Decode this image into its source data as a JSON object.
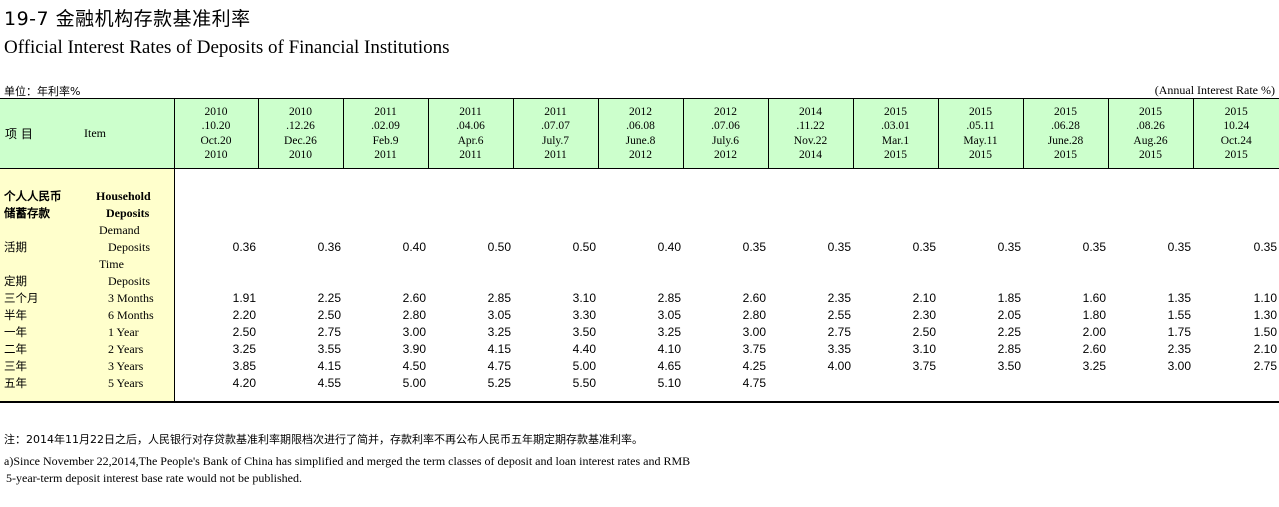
{
  "title_cn": "19-7 金融机构存款基准利率",
  "title_en": "Official Interest Rates of Deposits of Financial Institutions",
  "unit_cn": "单位：年利率%",
  "unit_en": "(Annual Interest Rate %)",
  "header": {
    "item_cn": "项  目",
    "item_en": "Item",
    "dates": [
      {
        "cn_year": "2010",
        "cn_date": ".10.20",
        "en_date": "Oct.20",
        "en_year": "2010"
      },
      {
        "cn_year": "2010",
        "cn_date": ".12.26",
        "en_date": "Dec.26",
        "en_year": "2010"
      },
      {
        "cn_year": "2011",
        "cn_date": ".02.09",
        "en_date": "Feb.9",
        "en_year": "2011"
      },
      {
        "cn_year": "2011",
        "cn_date": ".04.06",
        "en_date": "Apr.6",
        "en_year": "2011"
      },
      {
        "cn_year": "2011",
        "cn_date": ".07.07",
        "en_date": "July.7",
        "en_year": "2011"
      },
      {
        "cn_year": "2012",
        "cn_date": ".06.08",
        "en_date": "June.8",
        "en_year": "2012"
      },
      {
        "cn_year": "2012",
        "cn_date": ".07.06",
        "en_date": "July.6",
        "en_year": "2012"
      },
      {
        "cn_year": "2014",
        "cn_date": ".11.22",
        "en_date": "Nov.22",
        "en_year": "2014"
      },
      {
        "cn_year": "2015",
        "cn_date": ".03.01",
        "en_date": "Mar.1",
        "en_year": "2015"
      },
      {
        "cn_year": "2015",
        "cn_date": ".05.11",
        "en_date": "May.11",
        "en_year": "2015"
      },
      {
        "cn_year": "2015",
        "cn_date": ".06.28",
        "en_date": "June.28",
        "en_year": "2015"
      },
      {
        "cn_year": "2015",
        "cn_date": ".08.26",
        "en_date": "Aug.26",
        "en_year": "2015"
      },
      {
        "cn_year": "2015",
        "cn_date": "10.24",
        "en_date": "Oct.24",
        "en_year": "2015"
      }
    ]
  },
  "rows": [
    {
      "cn": "个人人民币",
      "en": "Household",
      "values": [
        "",
        "",
        "",
        "",
        "",
        "",
        "",
        "",
        "",
        "",
        "",
        "",
        ""
      ]
    },
    {
      "cn": "储蓄存款",
      "en": "Deposits",
      "values": [
        "",
        "",
        "",
        "",
        "",
        "",
        "",
        "",
        "",
        "",
        "",
        "",
        ""
      ]
    },
    {
      "cn": "",
      "en": "Demand",
      "values": [
        "",
        "",
        "",
        "",
        "",
        "",
        "",
        "",
        "",
        "",
        "",
        "",
        ""
      ]
    },
    {
      "cn": "活期",
      "en": "Deposits",
      "values": [
        "0.36",
        "0.36",
        "0.40",
        "0.50",
        "0.50",
        "0.40",
        "0.35",
        "0.35",
        "0.35",
        "0.35",
        "0.35",
        "0.35",
        "0.35"
      ]
    },
    {
      "cn": "",
      "en": "Time",
      "values": [
        "",
        "",
        "",
        "",
        "",
        "",
        "",
        "",
        "",
        "",
        "",
        "",
        ""
      ]
    },
    {
      "cn": "定期",
      "en": "Deposits",
      "values": [
        "",
        "",
        "",
        "",
        "",
        "",
        "",
        "",
        "",
        "",
        "",
        "",
        ""
      ]
    },
    {
      "cn": "三个月",
      "en": "3 Months",
      "values": [
        "1.91",
        "2.25",
        "2.60",
        "2.85",
        "3.10",
        "2.85",
        "2.60",
        "2.35",
        "2.10",
        "1.85",
        "1.60",
        "1.35",
        "1.10"
      ]
    },
    {
      "cn": "半年",
      "en": "6 Months",
      "values": [
        "2.20",
        "2.50",
        "2.80",
        "3.05",
        "3.30",
        "3.05",
        "2.80",
        "2.55",
        "2.30",
        "2.05",
        "1.80",
        "1.55",
        "1.30"
      ]
    },
    {
      "cn": "一年",
      "en": "1 Year",
      "values": [
        "2.50",
        "2.75",
        "3.00",
        "3.25",
        "3.50",
        "3.25",
        "3.00",
        "2.75",
        "2.50",
        "2.25",
        "2.00",
        "1.75",
        "1.50"
      ]
    },
    {
      "cn": "二年",
      "en": "2 Years",
      "values": [
        "3.25",
        "3.55",
        "3.90",
        "4.15",
        "4.40",
        "4.10",
        "3.75",
        "3.35",
        "3.10",
        "2.85",
        "2.60",
        "2.35",
        "2.10"
      ]
    },
    {
      "cn": "三年",
      "en": "3 Years",
      "values": [
        "3.85",
        "4.15",
        "4.50",
        "4.75",
        "5.00",
        "4.65",
        "4.25",
        "4.00",
        "3.75",
        "3.50",
        "3.25",
        "3.00",
        "2.75"
      ]
    },
    {
      "cn": "五年",
      "en": "5 Years",
      "values": [
        "4.20",
        "4.55",
        "5.00",
        "5.25",
        "5.50",
        "5.10",
        "4.75",
        "",
        "",
        "",
        "",
        "",
        ""
      ]
    }
  ],
  "notes": {
    "cn": "注：2014年11月22日之后，人民银行对存贷款基准利率期限档次进行了简并，存款利率不再公布人民币五年期定期存款基准利率。",
    "en_line1": "a)Since November 22,2014,The People's Bank of China has simplified and merged the term classes of deposit and loan interest rates and RMB",
    "en_line2": "5-year-term deposit interest base rate would not be published."
  },
  "colors": {
    "header_bg": "#ccffcc",
    "label_bg": "#ffffcc"
  }
}
